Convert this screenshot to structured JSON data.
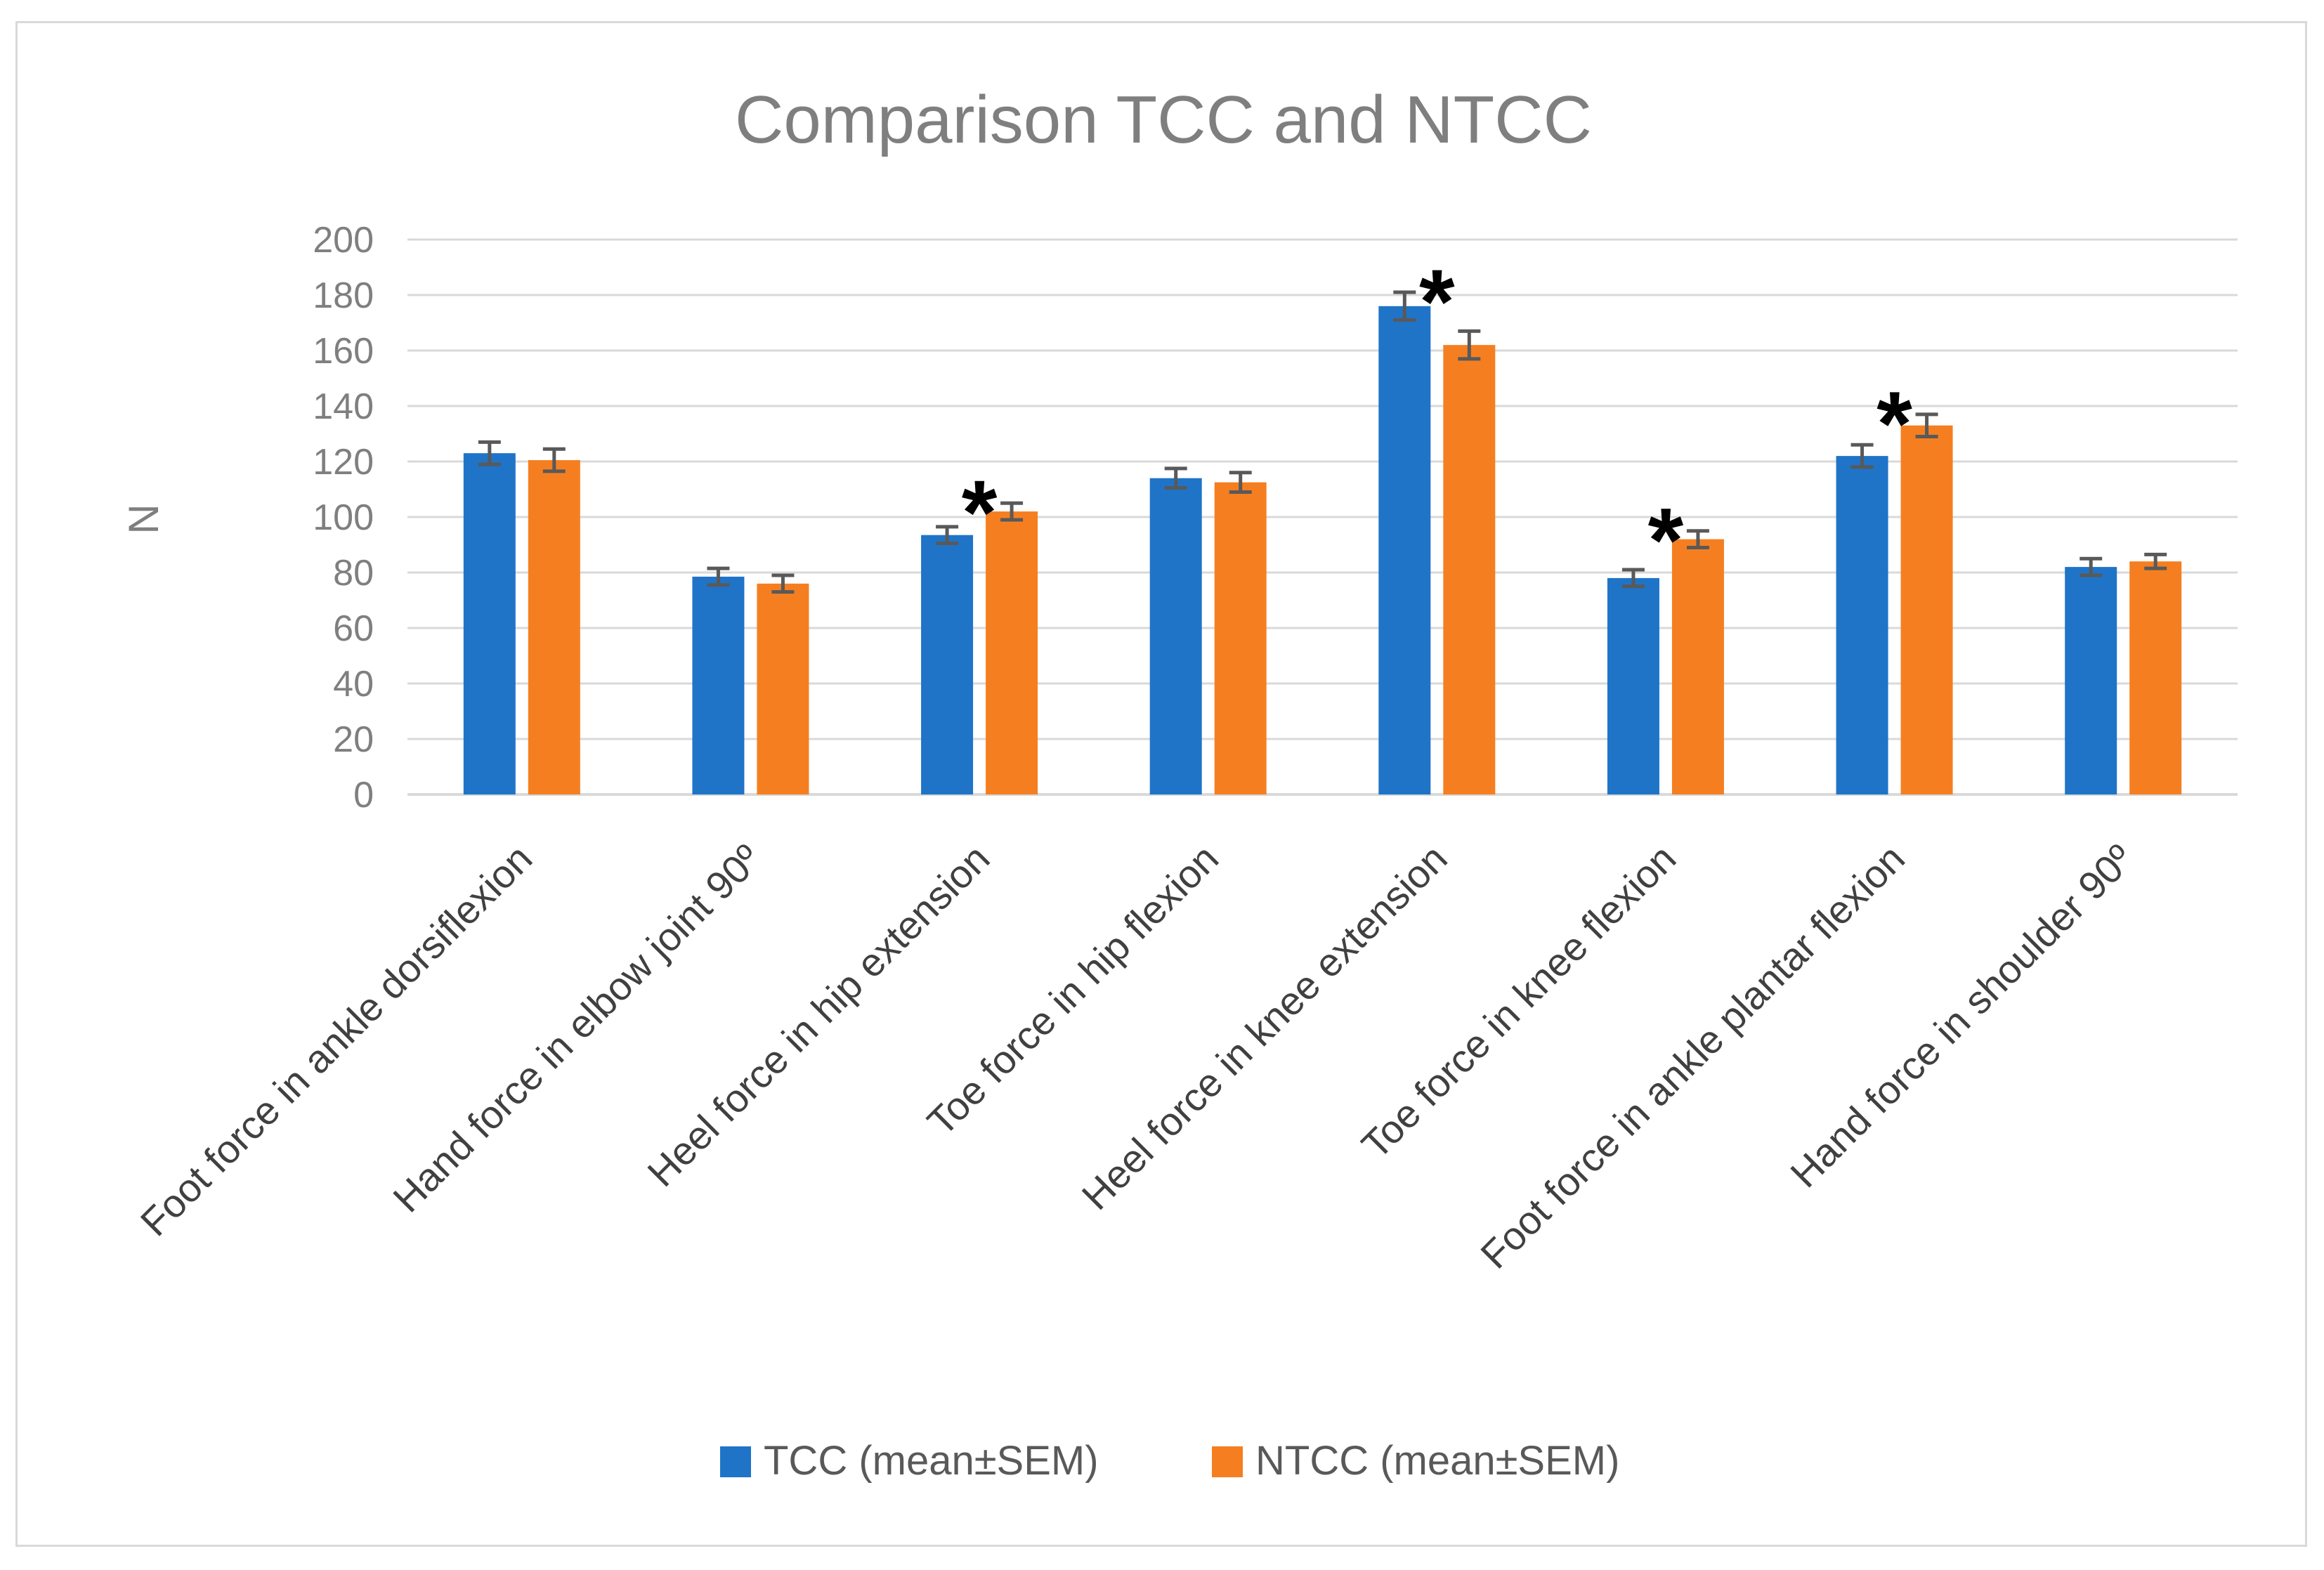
{
  "chart_data": {
    "type": "bar",
    "title": "Comparison TCC and NTCC",
    "xlabel": "",
    "ylabel": "N",
    "ylim": [
      0,
      200
    ],
    "yticks": [
      0,
      20,
      40,
      60,
      80,
      100,
      120,
      140,
      160,
      180,
      200
    ],
    "grid": true,
    "legend_position": "bottom",
    "categories": [
      "Foot force in ankle dorsiflexion",
      "Hand force in elbow joint 90º",
      "Heel force in hip extension",
      "Toe force in hip flexion",
      "Heel force in knee extension",
      "Toe force in knee flexion",
      "Foot force in ankle plantar flexion",
      "Hand force in shoulder 90º"
    ],
    "series": [
      {
        "name": "TCC (mean±SEM)",
        "color": "#1f74c8",
        "values": [
          123,
          78.5,
          93.5,
          114,
          176,
          78,
          122,
          82
        ],
        "errors": [
          4,
          3,
          3,
          3.5,
          5,
          3,
          4,
          3
        ]
      },
      {
        "name": "NTCC (mean±SEM)",
        "color": "#f57f20",
        "values": [
          120.5,
          76,
          102,
          112.5,
          162,
          92,
          133,
          84
        ],
        "errors": [
          4,
          3,
          3,
          3.5,
          5,
          3,
          4,
          2.5
        ]
      }
    ],
    "significance": {
      "symbol": "*",
      "categories": [
        2,
        4,
        5,
        6
      ]
    },
    "error_bar_color": "#595959",
    "grid_color": "#d9d9d9"
  }
}
